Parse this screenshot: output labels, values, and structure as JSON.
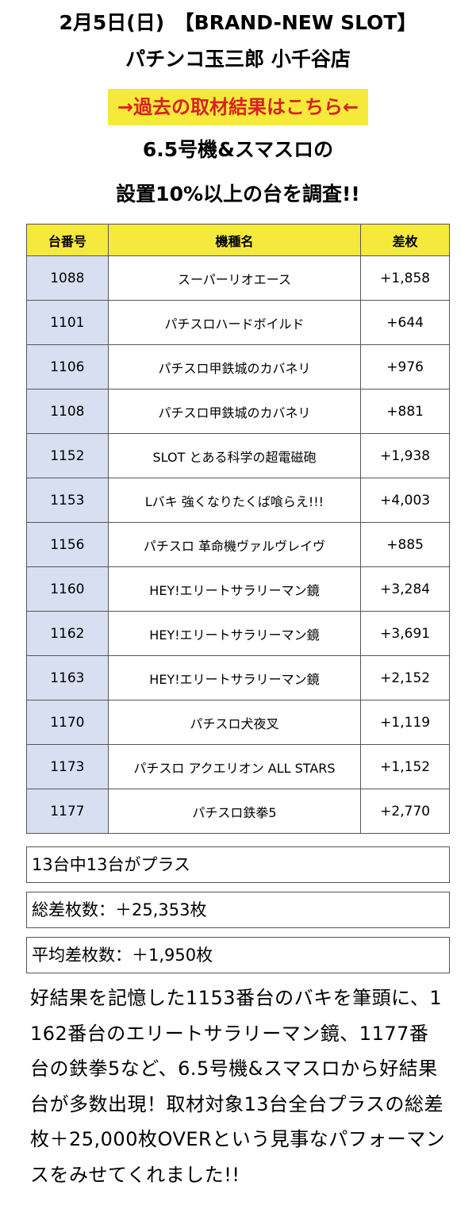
{
  "header": {
    "date_line": "2月5日(日)　【BRAND-NEW SLOT】",
    "store_line": "パチンコ玉三郎 小千谷店"
  },
  "link_banner": {
    "label": "→過去の取材結果はこちら←",
    "bg_color": "#f5ea3c",
    "text_color": "#d8231f"
  },
  "subtitle": {
    "line1": "6.5号機&スマスロの",
    "line2": "設置10%以上の台を調査!!"
  },
  "table": {
    "headers": [
      "台番号",
      "機種名",
      "差枚"
    ],
    "rows": [
      {
        "no": "1088",
        "name": "スーパーリオエース",
        "diff": "+1,858"
      },
      {
        "no": "1101",
        "name": "パチスロハードボイルド",
        "diff": "+644"
      },
      {
        "no": "1106",
        "name": "パチスロ甲鉄城のカバネリ",
        "diff": "+976"
      },
      {
        "no": "1108",
        "name": "パチスロ甲鉄城のカバネリ",
        "diff": "+881"
      },
      {
        "no": "1152",
        "name": "SLOT とある科学の超電磁砲",
        "diff": "+1,938"
      },
      {
        "no": "1153",
        "name": "Lバキ 強くなりたくば喰らえ!!!",
        "diff": "+4,003"
      },
      {
        "no": "1156",
        "name": "パチスロ 革命機ヴァルヴレイヴ",
        "diff": "+885"
      },
      {
        "no": "1160",
        "name": "HEY!エリートサラリーマン鏡",
        "diff": "+3,284"
      },
      {
        "no": "1162",
        "name": "HEY!エリートサラリーマン鏡",
        "diff": "+3,691"
      },
      {
        "no": "1163",
        "name": "HEY!エリートサラリーマン鏡",
        "diff": "+2,152"
      },
      {
        "no": "1170",
        "name": "パチスロ犬夜叉",
        "diff": "+1,119"
      },
      {
        "no": "1173",
        "name": "パチスロ アクエリオン ALL STARS",
        "diff": "+1,152"
      },
      {
        "no": "1177",
        "name": "パチスロ鉄拳5",
        "diff": "+2,770"
      }
    ]
  },
  "summary": {
    "plus_count": "13台中13台がプラス",
    "total_diff": "総差枚数：＋25,353枚",
    "avg_diff": "平均差枚数：＋1,950枚"
  },
  "description": "好結果を記憶した1153番台のバキを筆頭に、1162番台のエリートサラリーマン鏡、1177番台の鉄拳5など、6.5号機&スマスロから好結果台が多数出現！取材対象13台全台プラスの総差枚＋25,000枚OVERという見事なパフォーマンスをみせてくれました!!"
}
